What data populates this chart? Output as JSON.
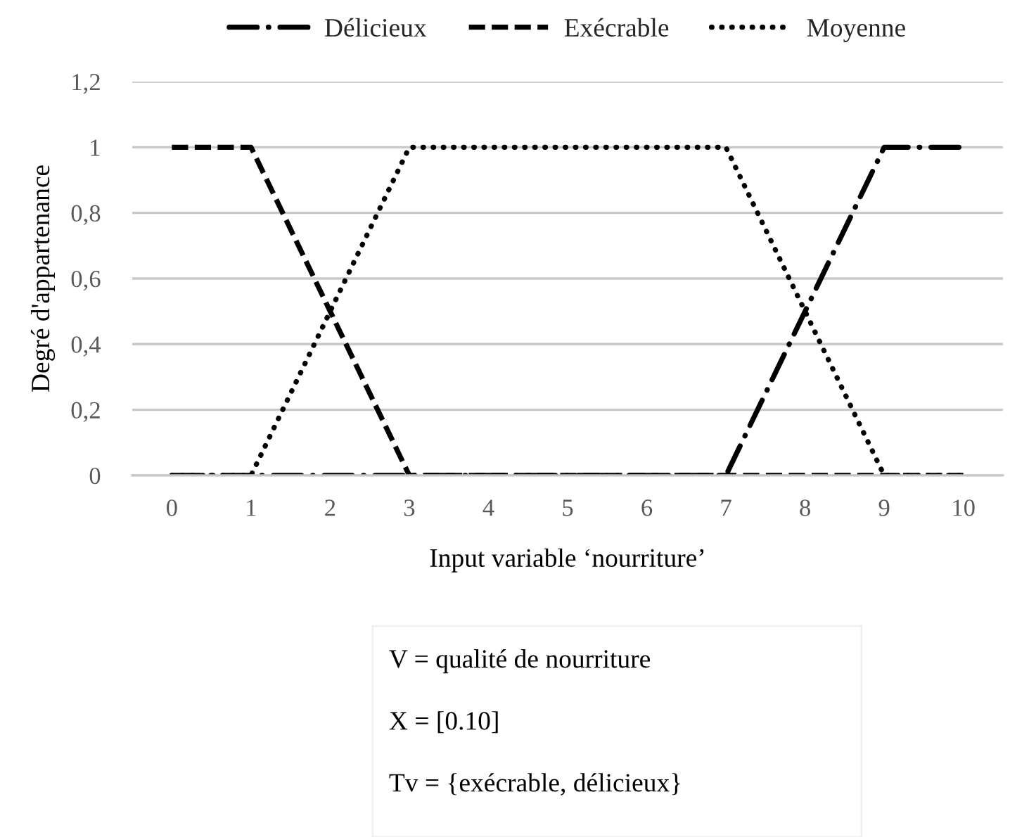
{
  "chart_data": {
    "type": "line",
    "xlabel": "Input variable ‘nourriture’",
    "ylabel": "Degré d'appartenance",
    "categories": [
      "0",
      "1",
      "2",
      "3",
      "4",
      "5",
      "6",
      "7",
      "8",
      "9",
      "10"
    ],
    "series": [
      {
        "name": "Délicieux",
        "color": "#000000",
        "line_style": "dashdot",
        "values": [
          0,
          0,
          0,
          0,
          0,
          0,
          0,
          0,
          0.5,
          1,
          1
        ]
      },
      {
        "name": "Exécrable",
        "color": "#000000",
        "line_style": "dashed",
        "values": [
          1,
          1,
          0.5,
          0,
          0,
          0,
          0,
          0,
          0,
          0,
          0
        ]
      },
      {
        "name": "Moyenne",
        "color": "#000000",
        "line_style": "dotted",
        "values": [
          0,
          0,
          0.5,
          1,
          1,
          1,
          1,
          1,
          0.5,
          0,
          0
        ]
      }
    ],
    "ylim": [
      0,
      1.2
    ],
    "yticks": [
      0,
      {
        "value": 0.2,
        "label": "0,2"
      },
      {
        "value": 0.4,
        "label": "0,4"
      },
      {
        "value": 0.6,
        "label": "0,6"
      },
      {
        "value": 0.8,
        "label": "0,8"
      },
      1,
      {
        "value": 1.2,
        "label": "1,2"
      }
    ],
    "grid": "y",
    "legend": "top",
    "annotations": [
      "V = qualité de nourriture",
      "X = [0.10]",
      "Tv = {exécrable, délicieux}"
    ]
  }
}
